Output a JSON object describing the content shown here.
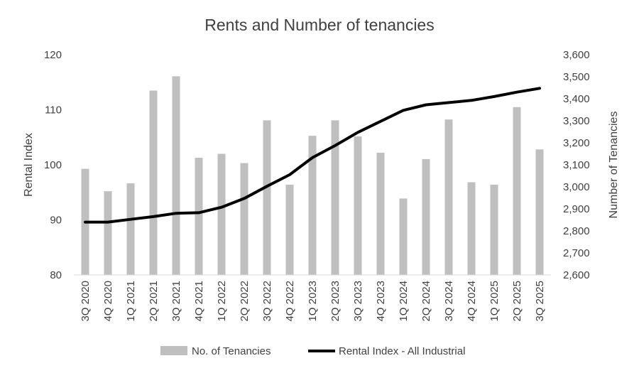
{
  "chart_data": {
    "type": "bar+line",
    "title": "Rents and Number of tenancies",
    "categories": [
      "3Q 2020",
      "4Q 2020",
      "1Q 2021",
      "2Q 2021",
      "3Q 2021",
      "4Q 2021",
      "1Q 2022",
      "2Q 2022",
      "3Q 2022",
      "4Q 2022",
      "1Q 2023",
      "2Q 2023",
      "3Q 2023",
      "4Q 2023",
      "1Q 2024",
      "2Q 2024",
      "3Q 2024",
      "4Q 2024",
      "1Q 2025",
      "2Q 2025",
      "3Q 2025"
    ],
    "y_left": {
      "label": "Rental Index",
      "min": 80,
      "max": 120,
      "ticks": [
        "80",
        "90",
        "100",
        "110",
        "120"
      ]
    },
    "y_right": {
      "label": "Number of Tenancies",
      "min": 2600,
      "max": 3600,
      "ticks": [
        "2,600",
        "2,700",
        "2,800",
        "2,900",
        "3,000",
        "3,100",
        "3,200",
        "3,300",
        "3,400",
        "3,500",
        "3,600"
      ]
    },
    "series": [
      {
        "name": "No. of Tenancies",
        "kind": "bar",
        "axis": "right",
        "color": "#bfbfbf",
        "values": [
          3082,
          2980,
          3016,
          3437,
          3502,
          3132,
          3150,
          3108,
          3302,
          3010,
          3232,
          3302,
          3229,
          3155,
          2947,
          3126,
          3306,
          3021,
          3010,
          3362,
          3170
        ]
      },
      {
        "name": "Rental Index - All Industrial",
        "kind": "line",
        "axis": "left",
        "color": "#000000",
        "values": [
          89.6,
          89.6,
          90.1,
          90.6,
          91.2,
          91.3,
          92.3,
          93.9,
          96.1,
          98.2,
          101.3,
          103.5,
          105.9,
          107.9,
          109.9,
          110.9,
          111.3,
          111.7,
          112.4,
          113.2,
          113.9
        ]
      }
    ],
    "legend_position": "bottom",
    "grid": false
  }
}
